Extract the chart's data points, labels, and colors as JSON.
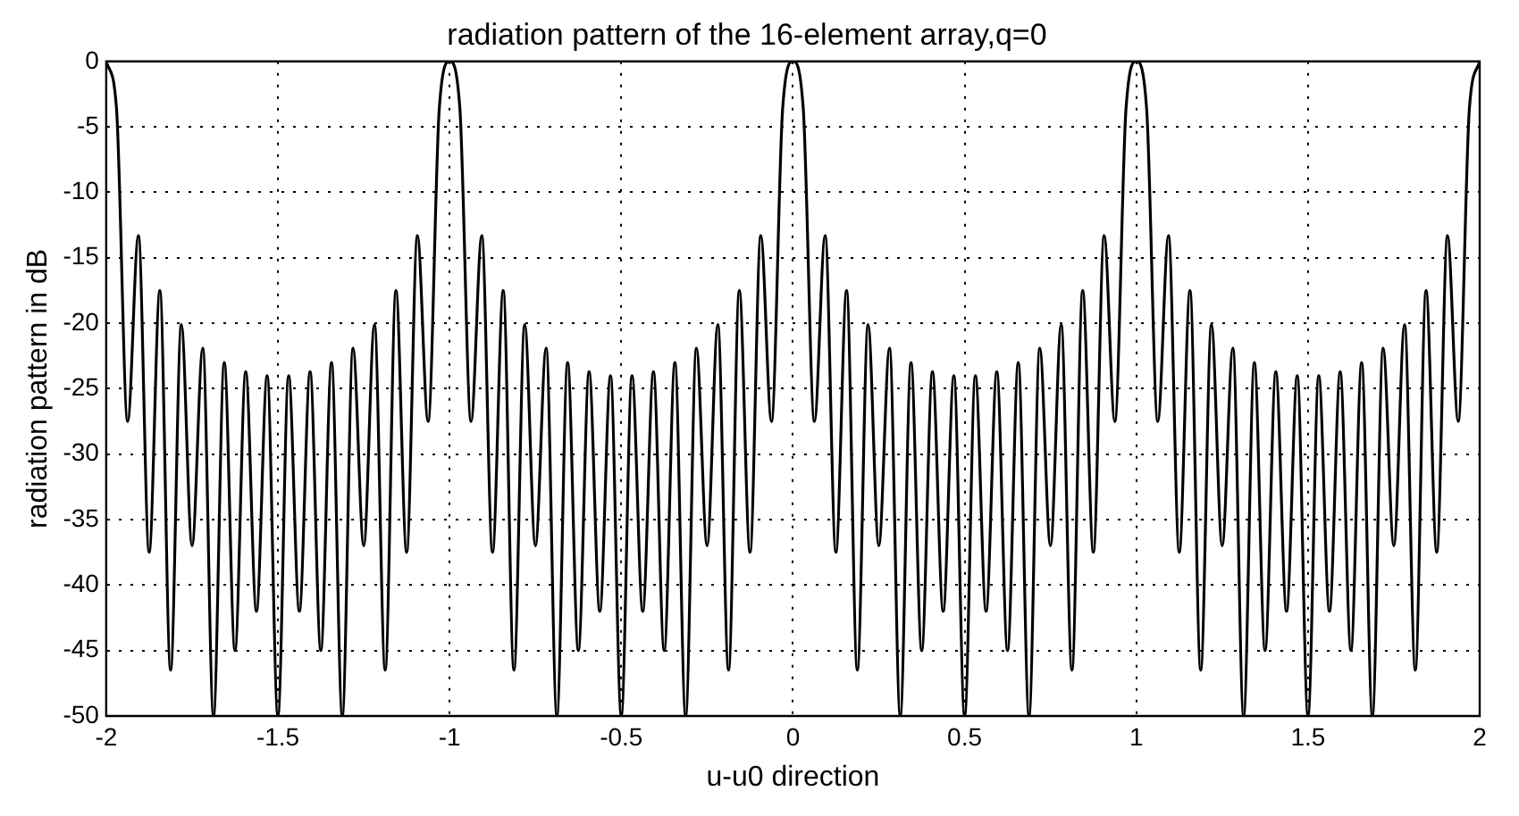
{
  "chart_data": {
    "type": "line",
    "title": "radiation pattern of the 16-element array,q=0",
    "xlabel": "u-u0 direction",
    "ylabel": "radiation pattern in dB",
    "xlim": [
      -2,
      2
    ],
    "xticks": [
      -2,
      -1.5,
      -1,
      -0.5,
      0,
      0.5,
      1,
      1.5,
      2
    ],
    "ylim": [
      -50,
      0
    ],
    "yticks": [
      -50,
      -45,
      -40,
      -35,
      -30,
      -25,
      -20,
      -15,
      -10,
      -5,
      0
    ],
    "grid": true,
    "legend": false,
    "marker": "none",
    "line_style": "solid",
    "series": [
      {
        "color": "#000000",
        "x": [
          -2,
          -1.97,
          -1.9375,
          -1.90625,
          -1.875,
          -1.84375,
          -1.8125,
          -1.78125,
          -1.75,
          -1.71875,
          -1.6875,
          -1.65625,
          -1.625,
          -1.59375,
          -1.5625,
          -1.53125,
          -1.5,
          -1.46875,
          -1.4375,
          -1.40625,
          -1.375,
          -1.34375,
          -1.3125,
          -1.28125,
          -1.25,
          -1.21875,
          -1.1875,
          -1.15625,
          -1.125,
          -1.09375,
          -1.0625,
          -1.03,
          -1,
          -0.97,
          -0.9375,
          -0.90625,
          -0.875,
          -0.84375,
          -0.8125,
          -0.78125,
          -0.75,
          -0.71875,
          -0.6875,
          -0.65625,
          -0.625,
          -0.59375,
          -0.5625,
          -0.53125,
          -0.5,
          -0.46875,
          -0.4375,
          -0.40625,
          -0.375,
          -0.34375,
          -0.3125,
          -0.28125,
          -0.25,
          -0.21875,
          -0.1875,
          -0.15625,
          -0.125,
          -0.09375,
          -0.0625,
          -0.03,
          0,
          0.03,
          0.0625,
          0.09375,
          0.125,
          0.15625,
          0.1875,
          0.21875,
          0.25,
          0.28125,
          0.3125,
          0.34375,
          0.375,
          0.40625,
          0.4375,
          0.46875,
          0.5,
          0.53125,
          0.5625,
          0.59375,
          0.625,
          0.65625,
          0.6875,
          0.71875,
          0.75,
          0.78125,
          0.8125,
          0.84375,
          0.875,
          0.90625,
          0.9375,
          0.97,
          1,
          1.03,
          1.0625,
          1.09375,
          1.125,
          1.15625,
          1.1875,
          1.21875,
          1.25,
          1.28125,
          1.3125,
          1.34375,
          1.375,
          1.40625,
          1.4375,
          1.46875,
          1.5,
          1.53125,
          1.5625,
          1.59375,
          1.625,
          1.65625,
          1.6875,
          1.71875,
          1.75,
          1.78125,
          1.8125,
          1.84375,
          1.875,
          1.90625,
          1.9375,
          1.97,
          2
        ],
        "values": [
          0,
          -3.6,
          -27.5,
          -13.3,
          -37.5,
          -17.5,
          -46.5,
          -20.1,
          -37,
          -21.9,
          -50,
          -23,
          -45,
          -23.7,
          -42,
          -24,
          -50,
          -24,
          -42,
          -23.7,
          -45,
          -23,
          -50,
          -21.9,
          -37,
          -20.1,
          -46.5,
          -17.5,
          -37.5,
          -13.3,
          -27.5,
          -3.6,
          0,
          -3.6,
          -27.5,
          -13.3,
          -37.5,
          -17.5,
          -46.5,
          -20.1,
          -37,
          -21.9,
          -50,
          -23,
          -45,
          -23.7,
          -42,
          -24,
          -50,
          -24,
          -42,
          -23.7,
          -45,
          -23,
          -50,
          -21.9,
          -37,
          -20.1,
          -46.5,
          -17.5,
          -37.5,
          -13.3,
          -27.5,
          -3.6,
          0,
          -3.6,
          -27.5,
          -13.3,
          -37.5,
          -17.5,
          -46.5,
          -20.1,
          -37,
          -21.9,
          -50,
          -23,
          -45,
          -23.7,
          -42,
          -24,
          -50,
          -24,
          -42,
          -23.7,
          -45,
          -23,
          -50,
          -21.9,
          -37,
          -20.1,
          -46.5,
          -17.5,
          -37.5,
          -13.3,
          -27.5,
          -3.6,
          0,
          -3.6,
          -27.5,
          -13.3,
          -37.5,
          -17.5,
          -46.5,
          -20.1,
          -37,
          -21.9,
          -50,
          -23,
          -45,
          -23.7,
          -42,
          -24,
          -50,
          -24,
          -42,
          -23.7,
          -45,
          -23,
          -50,
          -21.9,
          -37,
          -20.1,
          -46.5,
          -17.5,
          -37.5,
          -13.3,
          -27.5,
          -3.6,
          0
        ]
      }
    ]
  }
}
